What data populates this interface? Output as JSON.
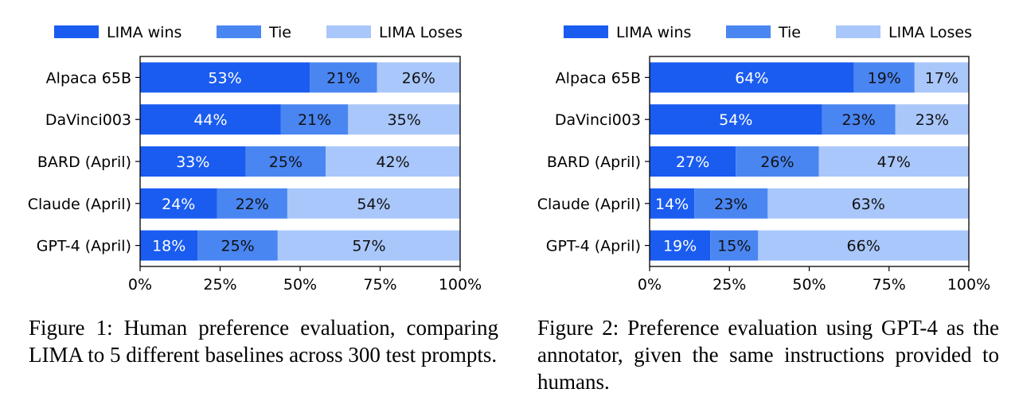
{
  "colors": {
    "wins": "#1a5cf0",
    "tie": "#4a86f2",
    "loses": "#a9c7fb"
  },
  "chart_data": [
    {
      "type": "bar",
      "orientation": "horizontal",
      "stacked": true,
      "legend": [
        "LIMA wins",
        "Tie",
        "LIMA Loses"
      ],
      "categories": [
        "Alpaca 65B",
        "DaVinci003",
        "BARD (April)",
        "Claude (April)",
        "GPT-4 (April)"
      ],
      "series": [
        {
          "name": "LIMA wins",
          "values": [
            53,
            44,
            33,
            24,
            18
          ]
        },
        {
          "name": "Tie",
          "values": [
            21,
            21,
            25,
            22,
            25
          ]
        },
        {
          "name": "LIMA Loses",
          "values": [
            26,
            35,
            42,
            54,
            57
          ]
        }
      ],
      "xticks": [
        "0%",
        "25%",
        "50%",
        "75%",
        "100%"
      ],
      "xlim": [
        0,
        100
      ],
      "caption": "Figure 1: Human preference evaluation, comparing LIMA to 5 different baselines across 300 test prompts."
    },
    {
      "type": "bar",
      "orientation": "horizontal",
      "stacked": true,
      "legend": [
        "LIMA wins",
        "Tie",
        "LIMA Loses"
      ],
      "categories": [
        "Alpaca 65B",
        "DaVinci003",
        "BARD (April)",
        "Claude (April)",
        "GPT-4 (April)"
      ],
      "series": [
        {
          "name": "LIMA wins",
          "values": [
            64,
            54,
            27,
            14,
            19
          ]
        },
        {
          "name": "Tie",
          "values": [
            19,
            23,
            26,
            23,
            15
          ]
        },
        {
          "name": "LIMA Loses",
          "values": [
            17,
            23,
            47,
            63,
            66
          ]
        }
      ],
      "xticks": [
        "0%",
        "25%",
        "50%",
        "75%",
        "100%"
      ],
      "xlim": [
        0,
        100
      ],
      "caption": "Figure 2: Preference evaluation using GPT-4 as the annotator, given the same instructions provided to humans."
    }
  ]
}
